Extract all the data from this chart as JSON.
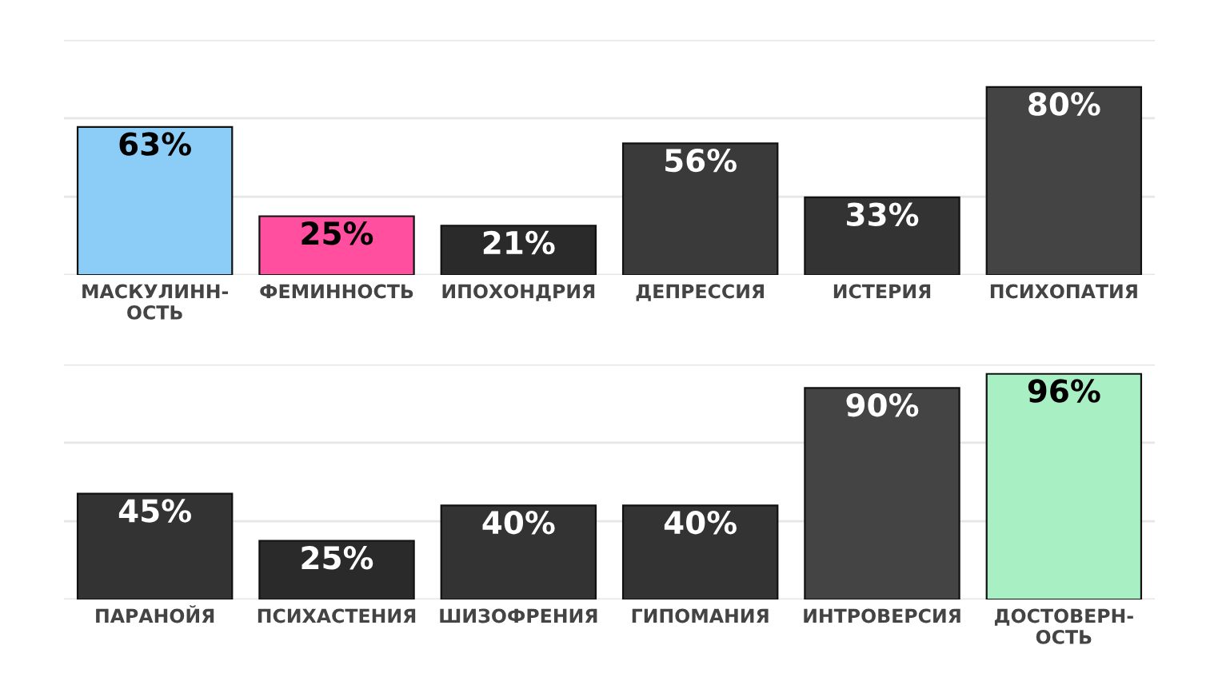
{
  "chart_data": [
    {
      "type": "bar",
      "categories": [
        "МАСКУЛИНН-\nОСТЬ",
        "ФЕМИННОСТЬ",
        "ИПОХОНДРИЯ",
        "ДЕПРЕССИЯ",
        "ИСТЕРИЯ",
        "ПСИХОПАТИЯ"
      ],
      "values": [
        63,
        25,
        21,
        56,
        33,
        80
      ],
      "value_labels": [
        "63%",
        "25%",
        "21%",
        "56%",
        "33%",
        "80%"
      ],
      "colors": [
        "#8ccdf8",
        "#ff4f9e",
        "#2a2a2a",
        "#3a3a3a",
        "#333333",
        "#444444"
      ],
      "ylim": [
        0,
        100
      ],
      "yticks": [
        {
          "value": 0,
          "label": null
        },
        {
          "value": 33.3,
          "label": null
        },
        {
          "value": 66.7,
          "label": null
        },
        {
          "value": 100,
          "label": null
        }
      ],
      "grid": "y"
    },
    {
      "type": "bar",
      "categories": [
        "ПАРАНОЙЯ",
        "ПСИХАСТЕНИЯ",
        "ШИЗОФРЕНИЯ",
        "ГИПОМАНИЯ",
        "ИНТРОВЕРСИЯ",
        "ДОСТОВЕРН-\nОСТЬ"
      ],
      "values": [
        45,
        25,
        40,
        40,
        90,
        96
      ],
      "value_labels": [
        "45%",
        "25%",
        "40%",
        "40%",
        "90%",
        "96%"
      ],
      "colors": [
        "#333333",
        "#2a2a2a",
        "#333333",
        "#333333",
        "#444444",
        "#a8f0c4"
      ],
      "ylim": [
        0,
        100
      ],
      "yticks": [
        {
          "value": 0,
          "label": null
        },
        {
          "value": 33.3,
          "label": null
        },
        {
          "value": 66.7,
          "label": null
        },
        {
          "value": 100,
          "label": null
        }
      ],
      "grid": "y"
    }
  ]
}
